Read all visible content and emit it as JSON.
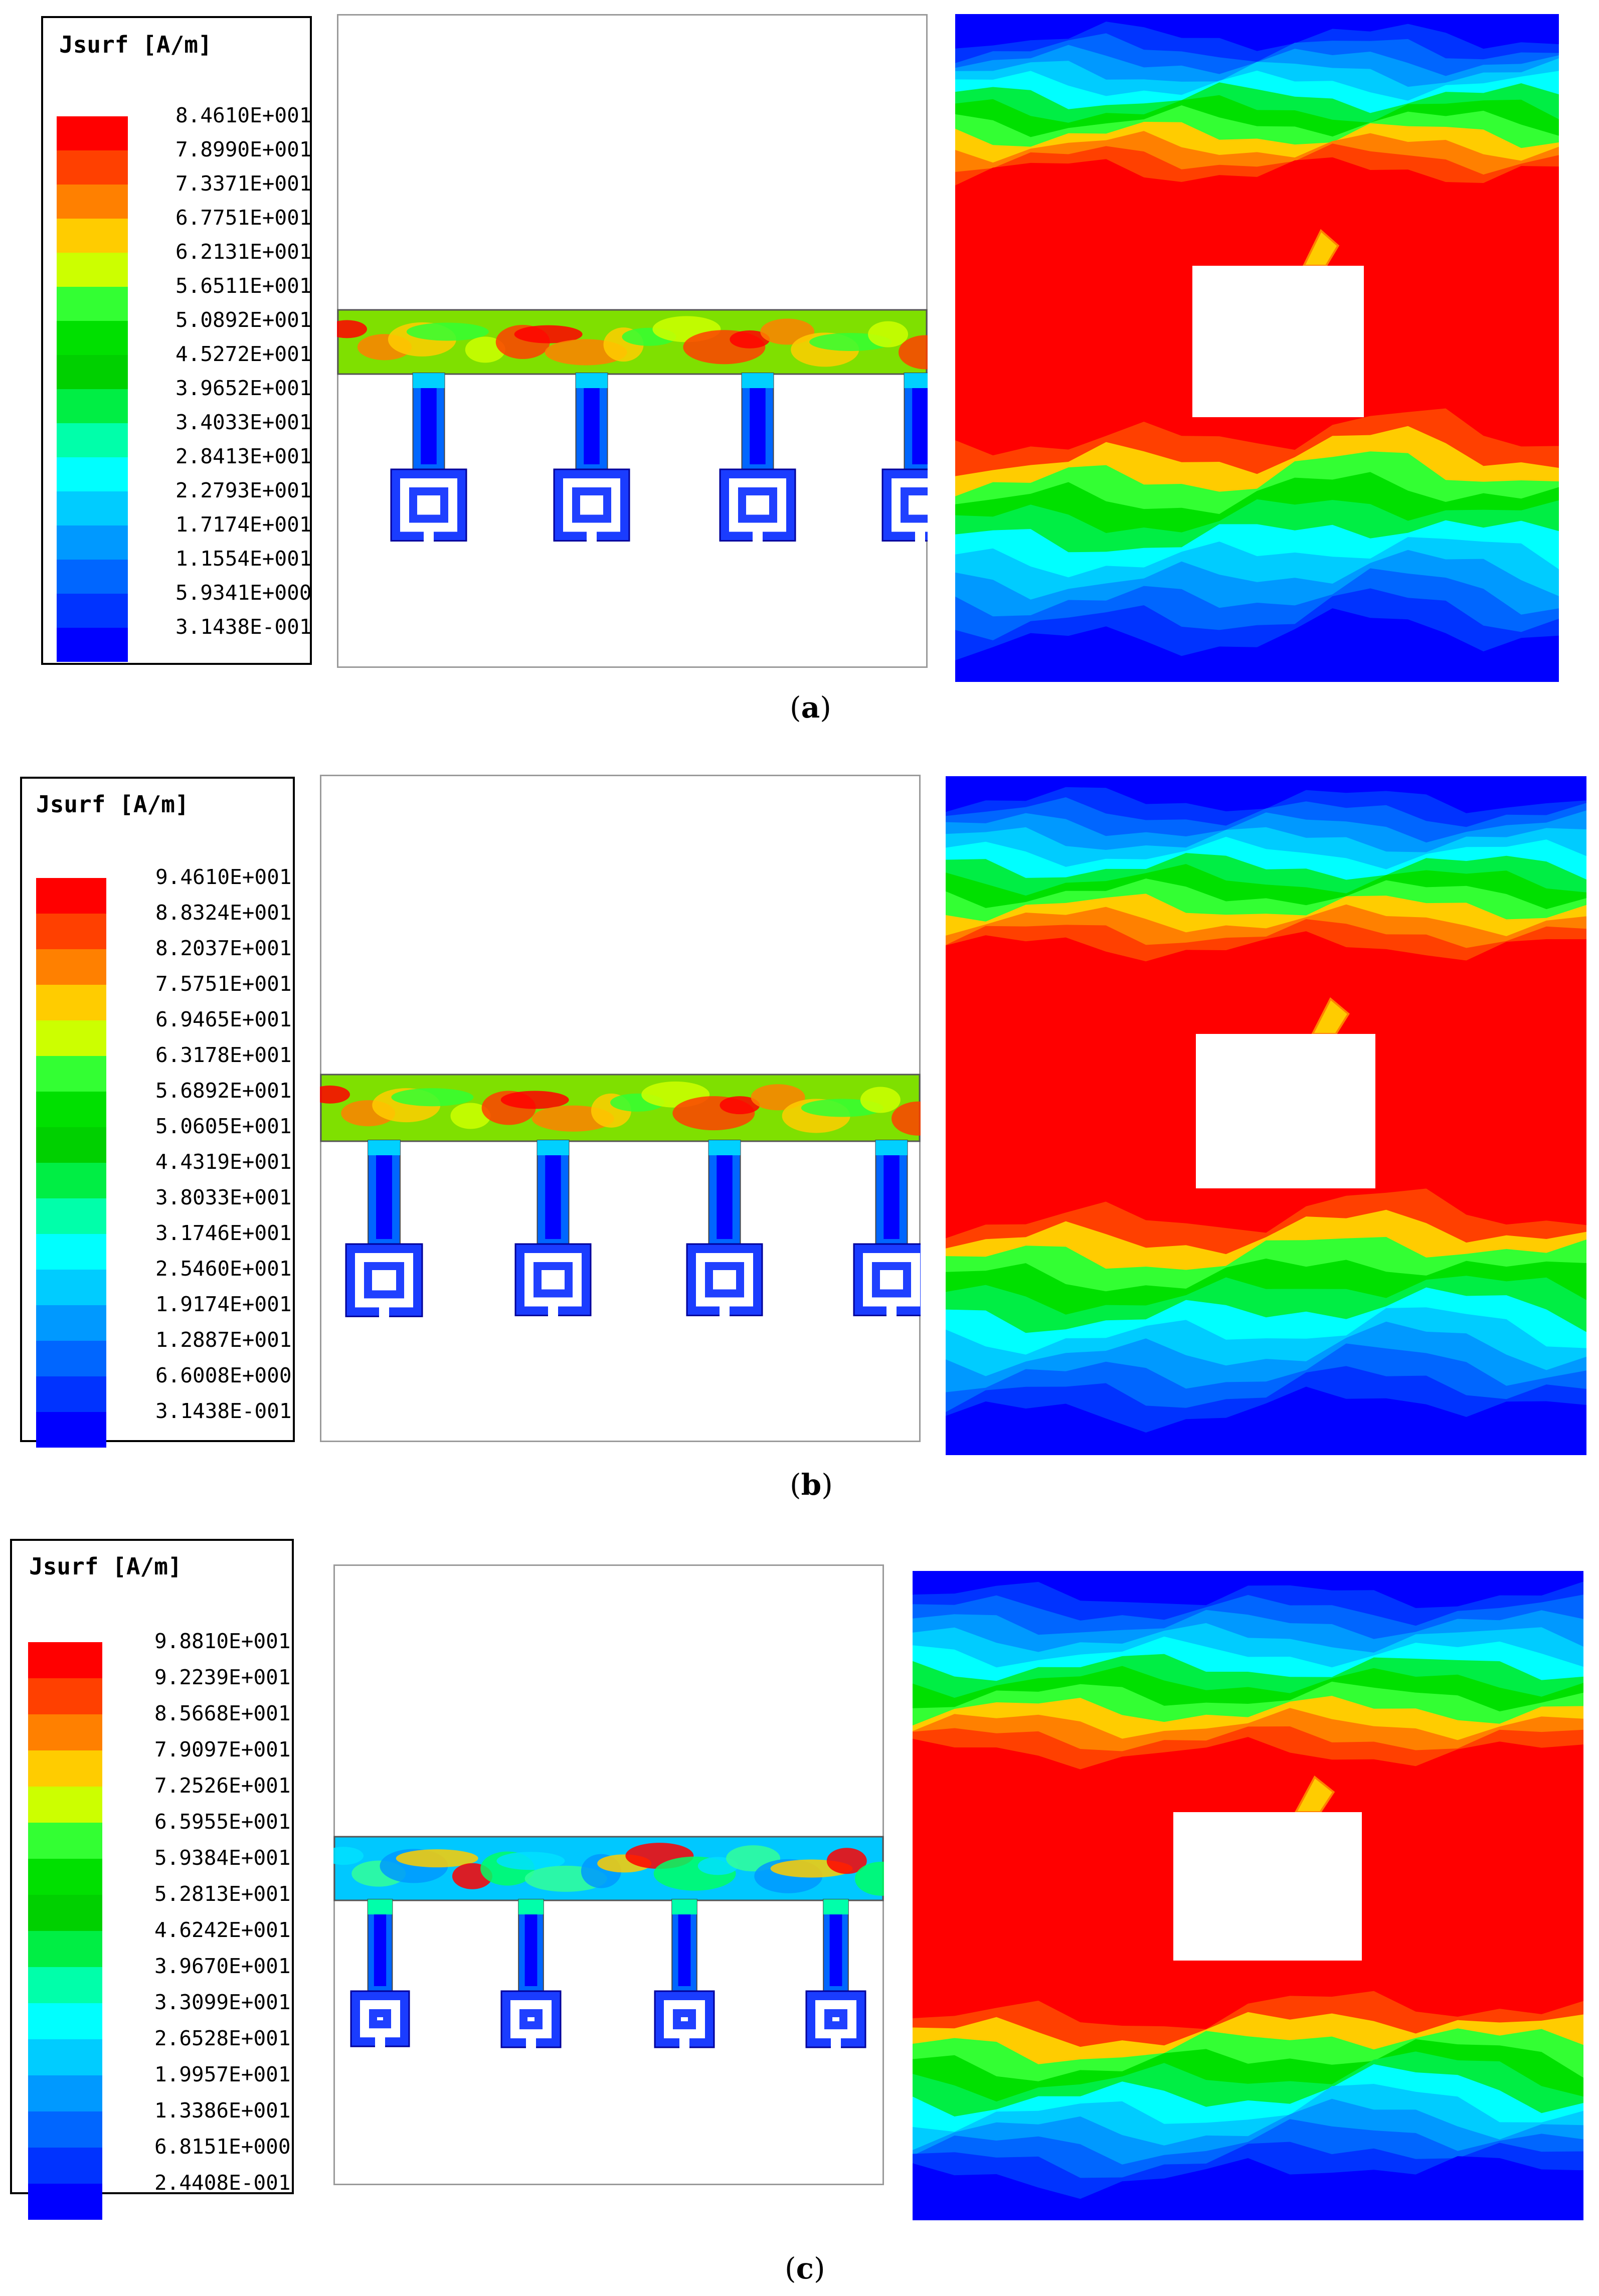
{
  "legend_title": "Jsurf [A/m]",
  "colors": [
    "#ff0000",
    "#ff4000",
    "#ff8000",
    "#ffcc00",
    "#ccff00",
    "#33ff33",
    "#00e000",
    "#00d000",
    "#00ee44",
    "#00ffaa",
    "#00ffff",
    "#00ccff",
    "#0099ff",
    "#0066ff",
    "#0033ff",
    "#0000ff"
  ],
  "panels": [
    {
      "caption_letter": "a",
      "values": [
        "8.4610E+001",
        "7.8990E+001",
        "7.3371E+001",
        "6.7751E+001",
        "6.2131E+001",
        "5.6511E+001",
        "5.0892E+001",
        "4.5272E+001",
        "3.9652E+001",
        "3.4033E+001",
        "2.8413E+001",
        "2.2793E+001",
        "1.7174E+001",
        "1.1554E+001",
        "5.9341E+000",
        "3.1438E-001"
      ]
    },
    {
      "caption_letter": "b",
      "values": [
        "9.4610E+001",
        "8.8324E+001",
        "8.2037E+001",
        "7.5751E+001",
        "6.9465E+001",
        "6.3178E+001",
        "5.6892E+001",
        "5.0605E+001",
        "4.4319E+001",
        "3.8033E+001",
        "3.1746E+001",
        "2.5460E+001",
        "1.9174E+001",
        "1.2887E+001",
        "6.6008E+000",
        "3.1438E-001"
      ]
    },
    {
      "caption_letter": "c",
      "values": [
        "9.8810E+001",
        "9.2239E+001",
        "8.5668E+001",
        "7.9097E+001",
        "7.2526E+001",
        "6.5955E+001",
        "5.9384E+001",
        "5.2813E+001",
        "4.6242E+001",
        "3.9670E+001",
        "3.3099E+001",
        "2.6528E+001",
        "1.9957E+001",
        "1.3386E+001",
        "6.8151E+000",
        "2.4408E-001"
      ]
    }
  ]
}
